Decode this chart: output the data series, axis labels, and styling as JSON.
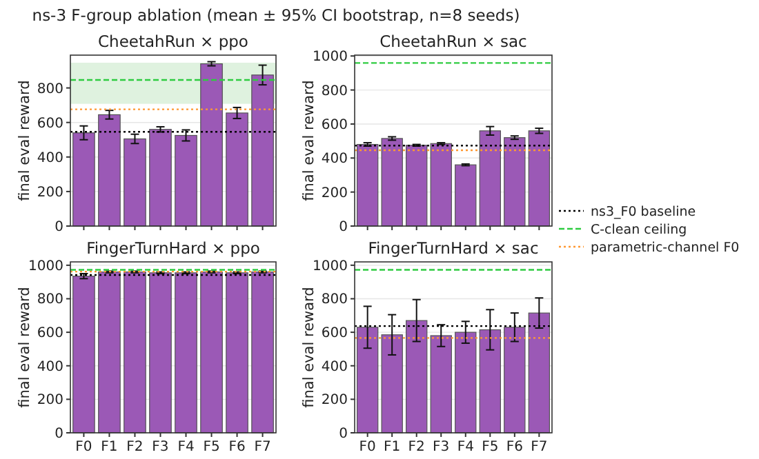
{
  "chart_data": [
    {
      "type": "bar",
      "title": "CheetahRun × ppo",
      "ylabel": "final eval reward",
      "annotations": [
        "ns-3 F-group ablation (mean ± 95% CI bootstrap, n=8 seeds)"
      ],
      "categories": [
        null,
        null,
        null,
        null,
        null,
        null,
        null,
        null
      ],
      "values": [
        540,
        645,
        505,
        560,
        525,
        940,
        655,
        875
      ],
      "errors": [
        40,
        25,
        27,
        15,
        32,
        12,
        32,
        57
      ],
      "color": "#9b59b6",
      "ylim": [
        0,
        990
      ],
      "yticks": [
        0,
        200,
        400,
        600,
        800
      ],
      "grid": "y",
      "tick_labels": "y",
      "legend": "right",
      "bands": [
        {
          "axis": "y",
          "from": 708,
          "to": 946,
          "color": "#dff2df"
        }
      ],
      "ref_lines": [
        {
          "axis": "y",
          "value": 546,
          "label": "ns3_F0 baseline",
          "color": "#000000",
          "line_style": "dotted"
        },
        {
          "axis": "y",
          "value": 846,
          "label": "C-clean ceiling",
          "color": "#2ecc40",
          "line_style": "dashed"
        },
        {
          "axis": "y",
          "value": 676,
          "label": "parametric-channel F0",
          "color": "#ff9933",
          "line_style": "dotted"
        }
      ]
    },
    {
      "type": "bar",
      "title": "CheetahRun × sac",
      "ylabel": "final eval reward",
      "categories": [
        null,
        null,
        null,
        null,
        null,
        null,
        null,
        null
      ],
      "values": [
        480,
        515,
        475,
        485,
        360,
        560,
        520,
        560
      ],
      "errors": [
        10,
        10,
        5,
        5,
        5,
        25,
        10,
        15
      ],
      "color": "#9b59b6",
      "ylim": [
        0,
        1005
      ],
      "yticks": [
        0,
        200,
        400,
        600,
        800,
        1000
      ],
      "grid": "y",
      "tick_labels": "y",
      "ref_lines": [
        {
          "axis": "y",
          "value": 473,
          "color": "#000000",
          "line_style": "dotted"
        },
        {
          "axis": "y",
          "value": 959,
          "color": "#2ecc40",
          "line_style": "dashed"
        },
        {
          "axis": "y",
          "value": 446,
          "color": "#ff9933",
          "line_style": "dotted"
        }
      ]
    },
    {
      "type": "bar",
      "title": "FingerTurnHard × ppo",
      "ylabel": "final eval reward",
      "categories": [
        "F0",
        "F1",
        "F2",
        "F3",
        "F4",
        "F5",
        "F6",
        "F7"
      ],
      "values": [
        935,
        960,
        960,
        955,
        955,
        960,
        955,
        960
      ],
      "errors": [
        15,
        5,
        5,
        5,
        5,
        5,
        5,
        5
      ],
      "color": "#9b59b6",
      "ylim": [
        0,
        1020
      ],
      "yticks": [
        0,
        200,
        400,
        600,
        800,
        1000
      ],
      "grid": "y",
      "ref_lines": [
        {
          "axis": "y",
          "value": 942,
          "color": "#000000",
          "line_style": "dotted"
        },
        {
          "axis": "y",
          "value": 973,
          "color": "#2ecc40",
          "line_style": "dashed"
        },
        {
          "axis": "y",
          "value": 962,
          "color": "#ff9933",
          "line_style": "dotted"
        }
      ]
    },
    {
      "type": "bar",
      "title": "FingerTurnHard × sac",
      "ylabel": "final eval reward",
      "categories": [
        "F0",
        "F1",
        "F2",
        "F3",
        "F4",
        "F5",
        "F6",
        "F7"
      ],
      "values": [
        630,
        585,
        670,
        580,
        600,
        615,
        630,
        715
      ],
      "errors": [
        125,
        120,
        125,
        65,
        65,
        120,
        85,
        90
      ],
      "color": "#9b59b6",
      "ylim": [
        0,
        1020
      ],
      "yticks": [
        0,
        200,
        400,
        600,
        800,
        1000
      ],
      "grid": "y",
      "ref_lines": [
        {
          "axis": "y",
          "value": 637,
          "color": "#000000",
          "line_style": "dotted"
        },
        {
          "axis": "y",
          "value": 973,
          "color": "#2ecc40",
          "line_style": "dashed"
        },
        {
          "axis": "y",
          "value": 566,
          "color": "#ff9933",
          "line_style": "dotted"
        }
      ]
    }
  ]
}
